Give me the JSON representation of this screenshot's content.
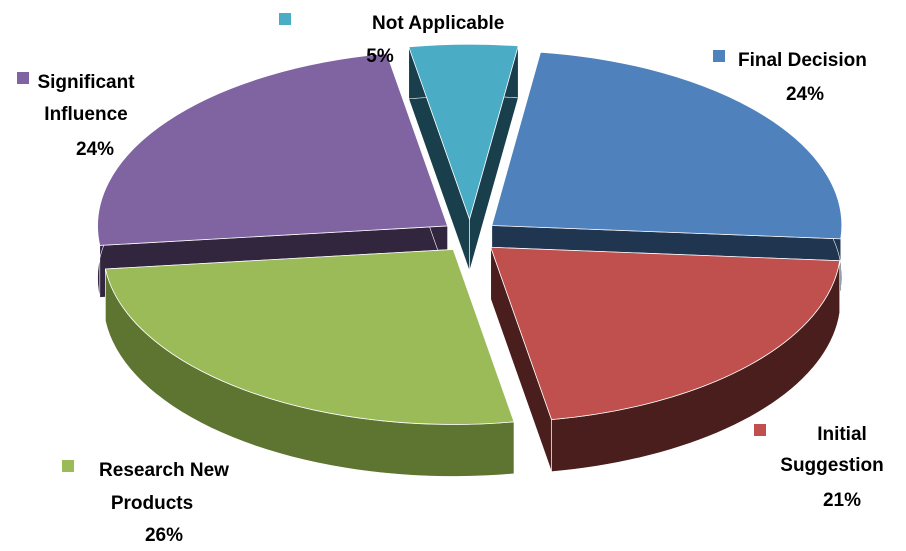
{
  "chart_data": {
    "type": "pie",
    "title": "",
    "slices": [
      {
        "label": "Final Decision",
        "label_lines": [
          "Final Decision"
        ],
        "value": 24,
        "value_label": "24%",
        "color": "#4F81BD",
        "side_color": "#1F3550"
      },
      {
        "label": "Initial Suggestion",
        "label_lines": [
          "Initial",
          "Suggestion"
        ],
        "value": 21,
        "value_label": "21%",
        "color": "#C0504D",
        "side_color": "#4A1E1D"
      },
      {
        "label": "Research New Products",
        "label_lines": [
          "Research New",
          "Products"
        ],
        "value": 26,
        "value_label": "26%",
        "color": "#9BBB59",
        "side_color": "#5E7532"
      },
      {
        "label": "Significant Influence",
        "label_lines": [
          "Significant",
          "Influence"
        ],
        "value": 24,
        "value_label": "24%",
        "color": "#8064A2",
        "side_color": "#32263F"
      },
      {
        "label": "Not Applicable",
        "label_lines": [
          "Not Applicable"
        ],
        "value": 5,
        "value_label": "5%",
        "color": "#4BACC6",
        "side_color": "#1A3F4C"
      }
    ],
    "legend": "inline-labels",
    "style": "3d-exploded"
  }
}
